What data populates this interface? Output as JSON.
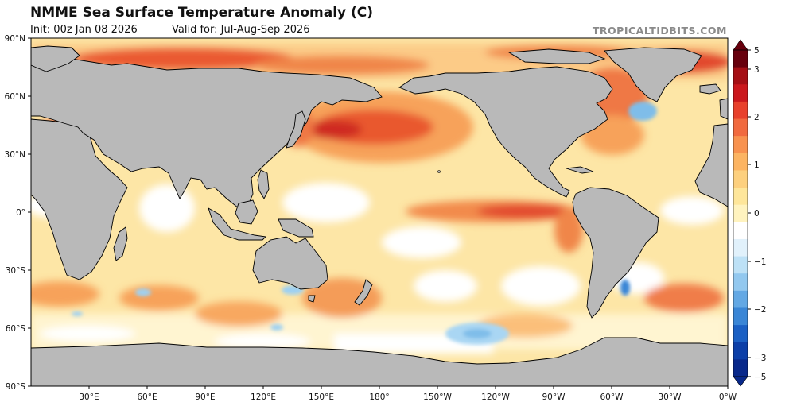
{
  "header": {
    "title": "NMME Sea Surface Temperature Anomaly (C)",
    "init": "Init: 00z Jan 08 2026",
    "valid": "Valid for: Jul-Aug-Sep 2026",
    "credit": "TROPICALTIDBITS.COM"
  },
  "map": {
    "lat_labels": [
      "90°N",
      "60°N",
      "30°N",
      "0°",
      "30°S",
      "60°S",
      "90°S"
    ],
    "lon_labels": [
      "30°E",
      "60°E",
      "90°E",
      "120°E",
      "150°E",
      "180°",
      "150°W",
      "120°W",
      "90°W",
      "60°W",
      "30°W",
      "0°W"
    ],
    "land_color": "#b9b9b9",
    "coast_color": "#000000"
  },
  "colorbar": {
    "labels": [
      "5",
      "3",
      "2",
      "1",
      "0",
      "−1",
      "−2",
      "−3",
      "−5"
    ],
    "colors": [
      "#67000d",
      "#a50f15",
      "#cb181d",
      "#e8412c",
      "#f16a3f",
      "#f8924f",
      "#fcb462",
      "#fdd07e",
      "#fee69a",
      "#fff3bf",
      "#ffffff",
      "#e1f1fb",
      "#bde1f6",
      "#92c8ef",
      "#63a8e4",
      "#3a86d6",
      "#1b60c4",
      "#0c3fa8",
      "#08288a"
    ]
  }
}
